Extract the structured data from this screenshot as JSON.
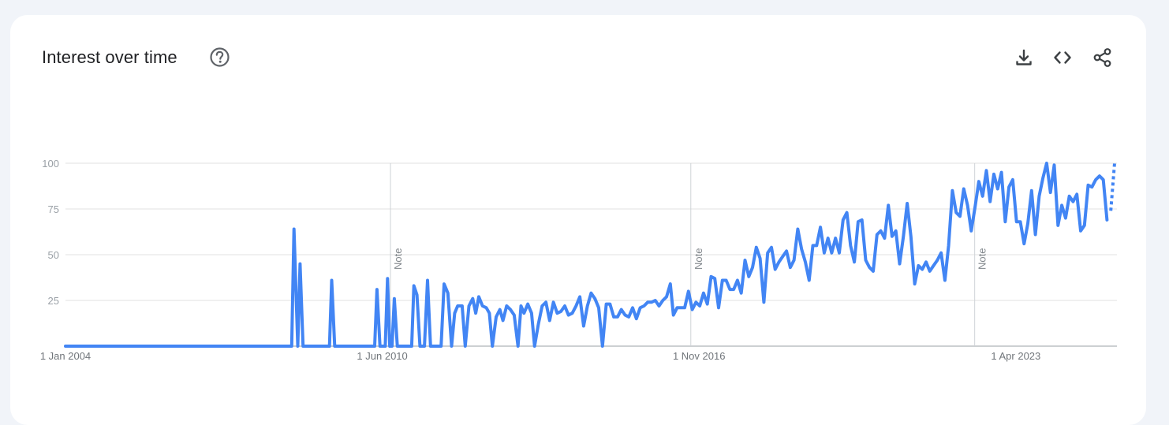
{
  "header": {
    "title": "Interest over time",
    "help_icon": "help-circle-icon",
    "toolbar": [
      "download-icon",
      "embed-code-icon",
      "share-icon"
    ]
  },
  "colors": {
    "line": "#4285f4",
    "grid": "#e0e0e0",
    "background": "#ffffff"
  },
  "chart_data": {
    "type": "line",
    "grid": true,
    "ylim": [
      0,
      100
    ],
    "y_ticks": [
      "100",
      "75",
      "50",
      "25"
    ],
    "x_ticks": [
      "1 Jan 2004",
      "1 Jun 2010",
      "1 Nov 2016",
      "1 Apr 2023"
    ],
    "x_range": [
      "2004-01",
      "2025-04"
    ],
    "notes": [
      {
        "x": "2010-08",
        "label": "Note"
      },
      {
        "x": "2016-09",
        "label": "Note"
      },
      {
        "x": "2022-06",
        "label": "Note"
      }
    ],
    "partial_data_from": "2025-03",
    "series": [
      {
        "values": [
          [
            0,
            0
          ],
          [
            300,
            0
          ],
          [
            303,
            64
          ],
          [
            308,
            0
          ],
          [
            311,
            45
          ],
          [
            315,
            0
          ],
          [
            350,
            0
          ],
          [
            353,
            36
          ],
          [
            357,
            0
          ],
          [
            410,
            0
          ],
          [
            413,
            31
          ],
          [
            417,
            0
          ],
          [
            424,
            0
          ],
          [
            427,
            37
          ],
          [
            430,
            0
          ],
          [
            433,
            0
          ],
          [
            436,
            26
          ],
          [
            440,
            0
          ],
          [
            459,
            0
          ],
          [
            462,
            33
          ],
          [
            466,
            28
          ],
          [
            470,
            0
          ],
          [
            476,
            0
          ],
          [
            480,
            36
          ],
          [
            484,
            0
          ],
          [
            498,
            0
          ],
          [
            502,
            34
          ],
          [
            507,
            29
          ],
          [
            512,
            0
          ],
          [
            516,
            18
          ],
          [
            520,
            22
          ],
          [
            526,
            22
          ],
          [
            530,
            0
          ],
          [
            535,
            22
          ],
          [
            540,
            26
          ],
          [
            544,
            18
          ],
          [
            548,
            27
          ],
          [
            553,
            22
          ],
          [
            558,
            21
          ],
          [
            562,
            18
          ],
          [
            566,
            0
          ],
          [
            571,
            16
          ],
          [
            576,
            20
          ],
          [
            580,
            14
          ],
          [
            585,
            22
          ],
          [
            590,
            20
          ],
          [
            595,
            17
          ],
          [
            600,
            0
          ],
          [
            604,
            22
          ],
          [
            608,
            18
          ],
          [
            613,
            23
          ],
          [
            618,
            18
          ],
          [
            622,
            0
          ],
          [
            627,
            12
          ],
          [
            632,
            22
          ],
          [
            637,
            24
          ],
          [
            642,
            14
          ],
          [
            647,
            24
          ],
          [
            652,
            18
          ],
          [
            657,
            19
          ],
          [
            662,
            22
          ],
          [
            667,
            17
          ],
          [
            672,
            18
          ],
          [
            677,
            22
          ],
          [
            682,
            27
          ],
          [
            687,
            11
          ],
          [
            692,
            22
          ],
          [
            697,
            29
          ],
          [
            702,
            26
          ],
          [
            707,
            21
          ],
          [
            712,
            0
          ],
          [
            717,
            23
          ],
          [
            722,
            23
          ],
          [
            727,
            16
          ],
          [
            732,
            16
          ],
          [
            737,
            20
          ],
          [
            742,
            17
          ],
          [
            747,
            16
          ],
          [
            752,
            21
          ],
          [
            757,
            15
          ],
          [
            762,
            21
          ],
          [
            767,
            22
          ],
          [
            772,
            24
          ],
          [
            777,
            24
          ],
          [
            782,
            25
          ],
          [
            787,
            22
          ],
          [
            792,
            25
          ],
          [
            797,
            27
          ],
          [
            802,
            34
          ],
          [
            806,
            17
          ],
          [
            811,
            21
          ],
          [
            816,
            21
          ],
          [
            821,
            21
          ],
          [
            826,
            30
          ],
          [
            831,
            20
          ],
          [
            836,
            24
          ],
          [
            841,
            22
          ],
          [
            846,
            29
          ],
          [
            851,
            23
          ],
          [
            856,
            38
          ],
          [
            861,
            37
          ],
          [
            866,
            21
          ],
          [
            871,
            36
          ],
          [
            876,
            36
          ],
          [
            881,
            31
          ],
          [
            886,
            31
          ],
          [
            891,
            36
          ],
          [
            896,
            29
          ],
          [
            901,
            47
          ],
          [
            906,
            38
          ],
          [
            911,
            43
          ],
          [
            916,
            54
          ],
          [
            921,
            48
          ],
          [
            926,
            24
          ],
          [
            931,
            51
          ],
          [
            936,
            54
          ],
          [
            941,
            42
          ],
          [
            946,
            46
          ],
          [
            951,
            49
          ],
          [
            956,
            52
          ],
          [
            961,
            43
          ],
          [
            966,
            47
          ],
          [
            971,
            64
          ],
          [
            976,
            53
          ],
          [
            981,
            46
          ],
          [
            986,
            36
          ],
          [
            991,
            55
          ],
          [
            996,
            55
          ],
          [
            1001,
            65
          ],
          [
            1006,
            51
          ],
          [
            1011,
            59
          ],
          [
            1016,
            51
          ],
          [
            1021,
            59
          ],
          [
            1026,
            51
          ],
          [
            1031,
            69
          ],
          [
            1036,
            73
          ],
          [
            1041,
            55
          ],
          [
            1046,
            46
          ],
          [
            1051,
            68
          ],
          [
            1056,
            69
          ],
          [
            1061,
            47
          ],
          [
            1066,
            43
          ],
          [
            1071,
            41
          ],
          [
            1076,
            61
          ],
          [
            1081,
            63
          ],
          [
            1086,
            59
          ],
          [
            1091,
            77
          ],
          [
            1096,
            60
          ],
          [
            1101,
            63
          ],
          [
            1106,
            45
          ],
          [
            1111,
            60
          ],
          [
            1116,
            78
          ],
          [
            1121,
            60
          ],
          [
            1126,
            34
          ],
          [
            1131,
            44
          ],
          [
            1136,
            42
          ],
          [
            1141,
            46
          ],
          [
            1146,
            41
          ],
          [
            1151,
            44
          ],
          [
            1156,
            47
          ],
          [
            1161,
            51
          ],
          [
            1166,
            36
          ],
          [
            1171,
            55
          ],
          [
            1176,
            85
          ],
          [
            1181,
            73
          ],
          [
            1186,
            71
          ],
          [
            1191,
            86
          ],
          [
            1196,
            77
          ],
          [
            1201,
            63
          ],
          [
            1206,
            76
          ],
          [
            1211,
            90
          ],
          [
            1216,
            82
          ],
          [
            1221,
            96
          ],
          [
            1226,
            79
          ],
          [
            1231,
            94
          ],
          [
            1236,
            86
          ],
          [
            1241,
            95
          ],
          [
            1246,
            68
          ],
          [
            1251,
            87
          ],
          [
            1256,
            91
          ],
          [
            1261,
            68
          ],
          [
            1266,
            68
          ],
          [
            1271,
            56
          ],
          [
            1276,
            67
          ],
          [
            1281,
            85
          ],
          [
            1286,
            61
          ],
          [
            1291,
            82
          ],
          [
            1296,
            92
          ],
          [
            1301,
            100
          ],
          [
            1306,
            84
          ],
          [
            1311,
            99
          ],
          [
            1316,
            66
          ],
          [
            1321,
            77
          ],
          [
            1326,
            70
          ],
          [
            1331,
            82
          ],
          [
            1336,
            79
          ],
          [
            1341,
            83
          ],
          [
            1346,
            63
          ],
          [
            1351,
            66
          ],
          [
            1356,
            88
          ],
          [
            1361,
            87
          ],
          [
            1366,
            91
          ],
          [
            1371,
            93
          ],
          [
            1376,
            91
          ],
          [
            1381,
            69
          ],
          [
            1386,
            74
          ],
          [
            1391,
            100
          ]
        ]
      }
    ]
  }
}
